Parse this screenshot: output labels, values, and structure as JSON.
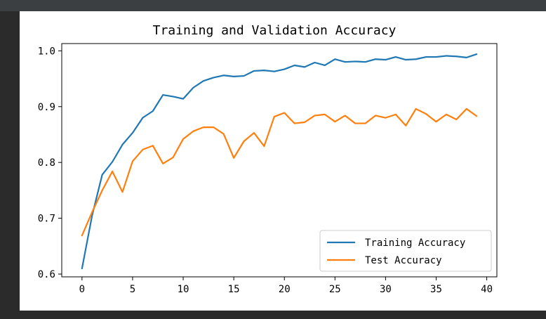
{
  "chart_data": {
    "type": "line",
    "title": "Training and Validation Accuracy",
    "xlabel": "",
    "ylabel": "",
    "xlim": [
      -2,
      41
    ],
    "ylim": [
      0.595,
      1.013
    ],
    "xticks": [
      0,
      5,
      10,
      15,
      20,
      25,
      30,
      35,
      40
    ],
    "yticks": [
      0.6,
      0.7,
      0.8,
      0.9,
      1.0
    ],
    "ytick_labels": [
      "0.6",
      "0.7",
      "0.8",
      "0.9",
      "1.0"
    ],
    "grid": false,
    "legend_position": "lower-right",
    "x": [
      0,
      1,
      2,
      3,
      4,
      5,
      6,
      7,
      8,
      9,
      10,
      11,
      12,
      13,
      14,
      15,
      16,
      17,
      18,
      19,
      20,
      21,
      22,
      23,
      24,
      25,
      26,
      27,
      28,
      29,
      30,
      31,
      32,
      33,
      34,
      35,
      36,
      37,
      38,
      39
    ],
    "series": [
      {
        "name": "Training Accuracy",
        "color": "#1f77b4",
        "values": [
          0.61,
          0.705,
          0.778,
          0.801,
          0.832,
          0.853,
          0.88,
          0.892,
          0.921,
          0.918,
          0.914,
          0.934,
          0.946,
          0.952,
          0.956,
          0.954,
          0.955,
          0.964,
          0.965,
          0.963,
          0.967,
          0.974,
          0.971,
          0.979,
          0.974,
          0.985,
          0.98,
          0.981,
          0.98,
          0.985,
          0.984,
          0.989,
          0.984,
          0.985,
          0.989,
          0.989,
          0.991,
          0.99,
          0.988,
          0.994
        ]
      },
      {
        "name": "Test Accuracy",
        "color": "#ff7f0e",
        "values": [
          0.669,
          0.711,
          0.75,
          0.784,
          0.747,
          0.802,
          0.823,
          0.83,
          0.798,
          0.809,
          0.842,
          0.856,
          0.863,
          0.863,
          0.851,
          0.808,
          0.838,
          0.853,
          0.829,
          0.882,
          0.889,
          0.87,
          0.872,
          0.884,
          0.886,
          0.873,
          0.884,
          0.87,
          0.87,
          0.884,
          0.88,
          0.886,
          0.866,
          0.896,
          0.887,
          0.873,
          0.886,
          0.877,
          0.896,
          0.883
        ]
      }
    ]
  }
}
